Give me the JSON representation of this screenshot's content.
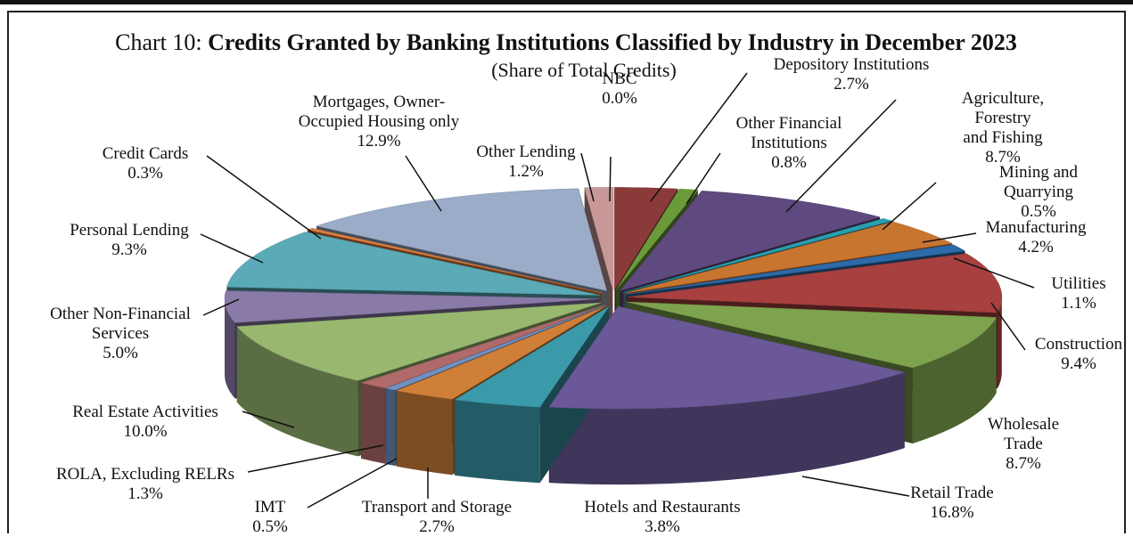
{
  "chart_data": {
    "type": "pie",
    "title_prefix": "Chart 10:",
    "title": "Credits Granted by Banking Institutions Classified by Industry in December 2023",
    "subtitle": "(Share of Total Credits)",
    "categories": [
      "NBC",
      "Depository Institutions",
      "Other Financial\nInstitutions",
      "Agriculture, Forestry\nand Fishing",
      "Mining and Quarrying",
      "Manufacturing",
      "Utilities",
      "Construction",
      "Wholesale Trade",
      "Retail Trade",
      "Hotels and Restaurants",
      "Transport and Storage",
      "IMT",
      "ROLA, Excluding RELRs",
      "Real Estate Activities",
      "Other Non-Financial\nServices",
      "Personal Lending",
      "Credit Cards",
      "Mortgages, Owner-\nOccupied Housing only",
      "Other Lending"
    ],
    "values": [
      0.0,
      2.7,
      0.8,
      8.7,
      0.5,
      4.2,
      1.1,
      9.4,
      8.7,
      16.8,
      3.8,
      2.7,
      0.5,
      1.3,
      10.0,
      5.0,
      9.3,
      0.3,
      12.9,
      1.2
    ],
    "value_labels": [
      "0.0%",
      "2.7%",
      "0.8%",
      "8.7%",
      "0.5%",
      "4.2%",
      "1.1%",
      "9.4%",
      "8.7%",
      "16.8%",
      "3.8%",
      "2.7%",
      "0.5%",
      "1.3%",
      "10.0%",
      "5.0%",
      "9.3%",
      "0.3%",
      "12.9%",
      "1.2%"
    ],
    "colors": [
      "#c99a9a",
      "#8b3a3a",
      "#6a9a3a",
      "#5e4a7e",
      "#2aa0b0",
      "#c87530",
      "#2d6aa8",
      "#a84040",
      "#7ea34e",
      "#6a5898",
      "#3a9aaa",
      "#d07f38",
      "#7090c0",
      "#b06a6a",
      "#98b870",
      "#8a7aa8",
      "#5aaab8",
      "#e08040",
      "#9aacc8",
      "#c89898"
    ]
  }
}
